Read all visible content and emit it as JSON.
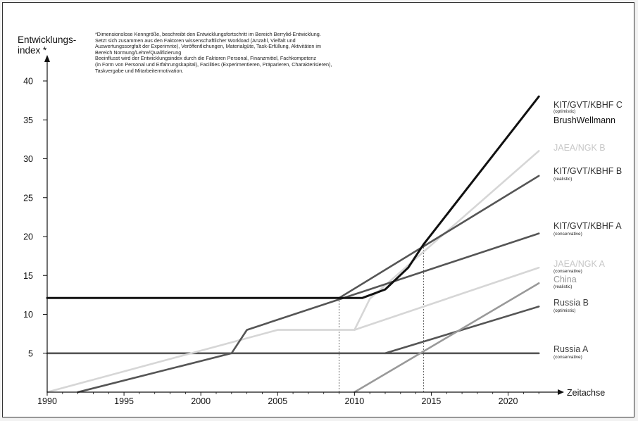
{
  "chart_data": {
    "type": "line",
    "ylabel": "Entwicklungs-\nindex *",
    "xlabel": "Zeitachse",
    "note": "*Dimensionslose Kenngröße, beschreibt den Entwicklungsfortschritt im Bereich Berrylid-Entwicklung.\nSetzt sich zusammen aus den Faktoren wissenschaftlicher Workload (Anzahl, Vielfalt und\nAuswertungssorgfalt der Experimnte), Veröffentlichungen, Materialgüte, Task-Erfüllung, Aktivitäten im\nBereich Normung/Lehre/Qualifizierung\nBeeinflusst wird der Entwicklungsindex durch die Faktoren Personal, Finanzmittel, Fachkompetenz\n(in Form von Personal und Erfahrungskapital), Facilities (Experimentieren, Präparieren, Charakterisieren),\nTaskvergabe und Mitarbeitermotivation.",
    "xlim": [
      1990,
      2023
    ],
    "ylim": [
      0,
      43
    ],
    "x_ticks": [
      1990,
      1995,
      2000,
      2005,
      2010,
      2015,
      2020
    ],
    "y_ticks": [
      5,
      10,
      15,
      20,
      25,
      30,
      35,
      40
    ],
    "reference_lines_x": [
      2009,
      2014.5
    ],
    "series": [
      {
        "name": "Russia A",
        "sub": "(conservative)",
        "color": "#555555",
        "points": [
          [
            1990,
            5
          ],
          [
            2022,
            5
          ]
        ]
      },
      {
        "name": "Russia B",
        "sub": "(optimistic)",
        "color": "#555555",
        "points": [
          [
            2012,
            5
          ],
          [
            2022,
            11
          ]
        ]
      },
      {
        "name": "China",
        "sub": "(realistic)",
        "color": "#999999",
        "points": [
          [
            2010,
            0
          ],
          [
            2022,
            14
          ]
        ]
      },
      {
        "name": "JAEA/NGK A",
        "sub": "(conservative)",
        "color": "#d6d6d6",
        "points": [
          [
            1990,
            0
          ],
          [
            2005,
            8
          ],
          [
            2010,
            8
          ],
          [
            2022,
            16
          ]
        ]
      },
      {
        "name": "JAEA/NGK B",
        "sub": "",
        "color": "#d6d6d6",
        "points": [
          [
            2010,
            8
          ],
          [
            2011,
            12
          ],
          [
            2022,
            31
          ]
        ]
      },
      {
        "name": "KIT/GVT/KBHF A",
        "sub": "(conservative)",
        "color": "#555555",
        "points": [
          [
            1992,
            0
          ],
          [
            2002,
            5
          ],
          [
            2003,
            8
          ],
          [
            2022,
            20.4
          ]
        ]
      },
      {
        "name": "KIT/GVT/KBHF B",
        "sub": "(realistic)",
        "color": "#555555",
        "points": [
          [
            2009,
            12.1
          ],
          [
            2022,
            27.8
          ]
        ]
      },
      {
        "name": "KIT/GVT/KBHF C",
        "sub": "(optimistic)",
        "color": "#111111",
        "points": [
          [
            1990,
            12.1
          ],
          [
            2010.5,
            12.1
          ],
          [
            2012,
            13.2
          ],
          [
            2013.5,
            16
          ],
          [
            2014.5,
            19
          ],
          [
            2022,
            38
          ]
        ]
      },
      {
        "name": "BrushWellmann",
        "sub": "",
        "color": "#111111",
        "points": []
      }
    ]
  }
}
